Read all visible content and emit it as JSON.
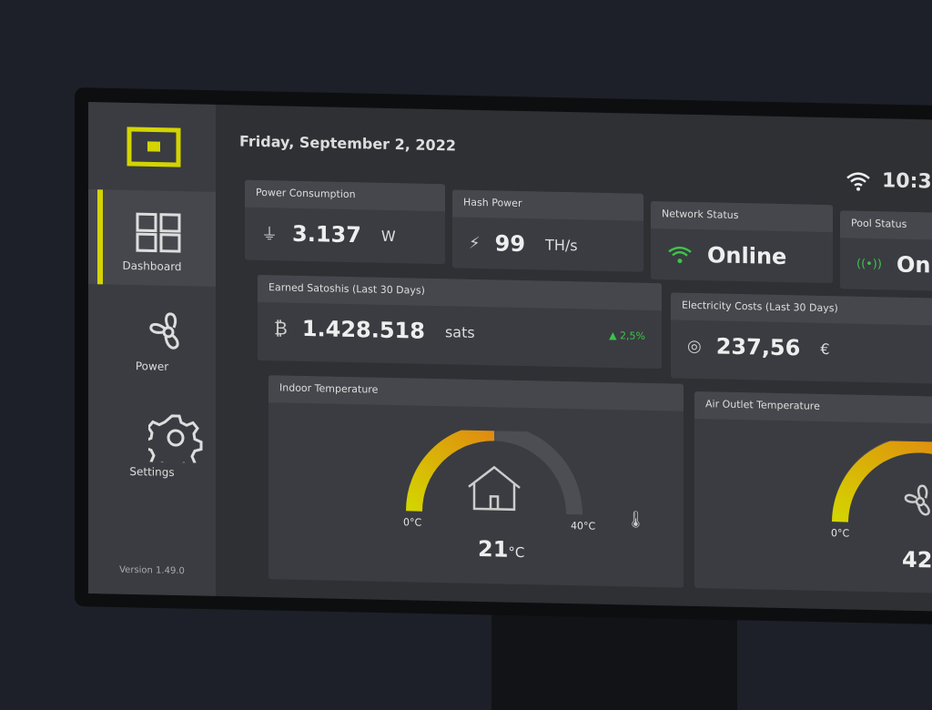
{
  "header": {
    "date": "Friday, September 2, 2022",
    "time": "10:3"
  },
  "nav": {
    "items": [
      {
        "label": "Dashboard"
      },
      {
        "label": "Power"
      },
      {
        "label": "Settings"
      }
    ],
    "version": "Version 1.49.0"
  },
  "cards": {
    "power": {
      "title": "Power Consumption",
      "value": "3.137",
      "unit": "W"
    },
    "hash": {
      "title": "Hash Power",
      "value": "99",
      "unit": "TH/s"
    },
    "network": {
      "title": "Network Status",
      "value": "Online"
    },
    "pool": {
      "title": "Pool Status",
      "value": "On"
    },
    "sats": {
      "title": "Earned Satoshis (Last 30 Days)",
      "value": "1.428.518",
      "unit": "sats",
      "change": "2,5%"
    },
    "costs": {
      "title": "Electricity Costs (Last 30 Days)",
      "value": "237,56",
      "unit": "€"
    },
    "indoor": {
      "title": "Indoor Temperature",
      "min_label": "0°C",
      "max_label": "40°C",
      "value": "21",
      "unit": "°C"
    },
    "outlet": {
      "title": "Air Outlet Temperature",
      "min_label": "0°C",
      "value": "42"
    }
  }
}
